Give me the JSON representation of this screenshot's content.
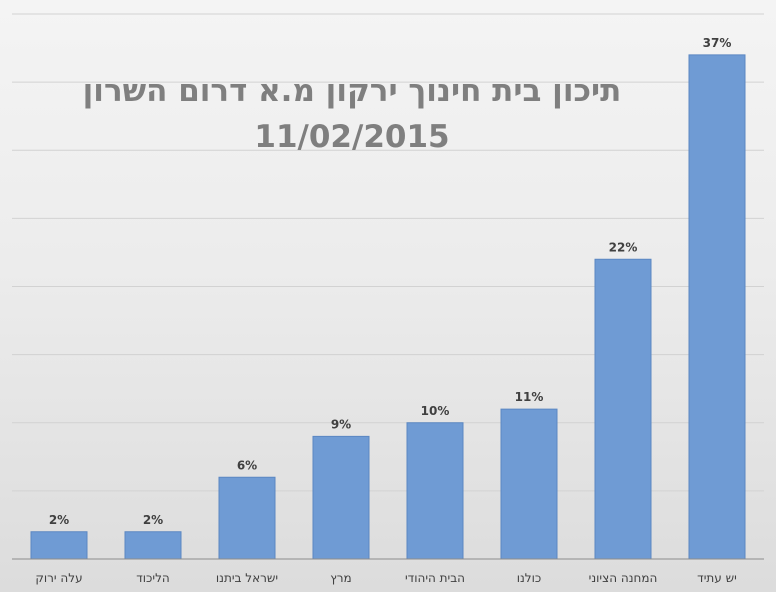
{
  "chart_data": {
    "type": "bar",
    "title": "תיכון בית חינוך ירקון מ.א דרום השרון",
    "subtitle": "11/02/2015",
    "categories": [
      "עלה ירוק",
      "הליכוד",
      "ישראל ביתנו",
      "מרץ",
      "הבית היהודי",
      "כולנו",
      "המחנה הציוני",
      "יש עתיד"
    ],
    "values": [
      2,
      2,
      6,
      9,
      10,
      11,
      22,
      37
    ],
    "data_labels": [
      "2%",
      "2%",
      "6%",
      "9%",
      "10%",
      "11%",
      "22%",
      "37%"
    ],
    "ylim": [
      0,
      40
    ],
    "grid": true,
    "colors": {
      "bar": "#6f9bd4",
      "title": "#7f7f7f"
    }
  }
}
